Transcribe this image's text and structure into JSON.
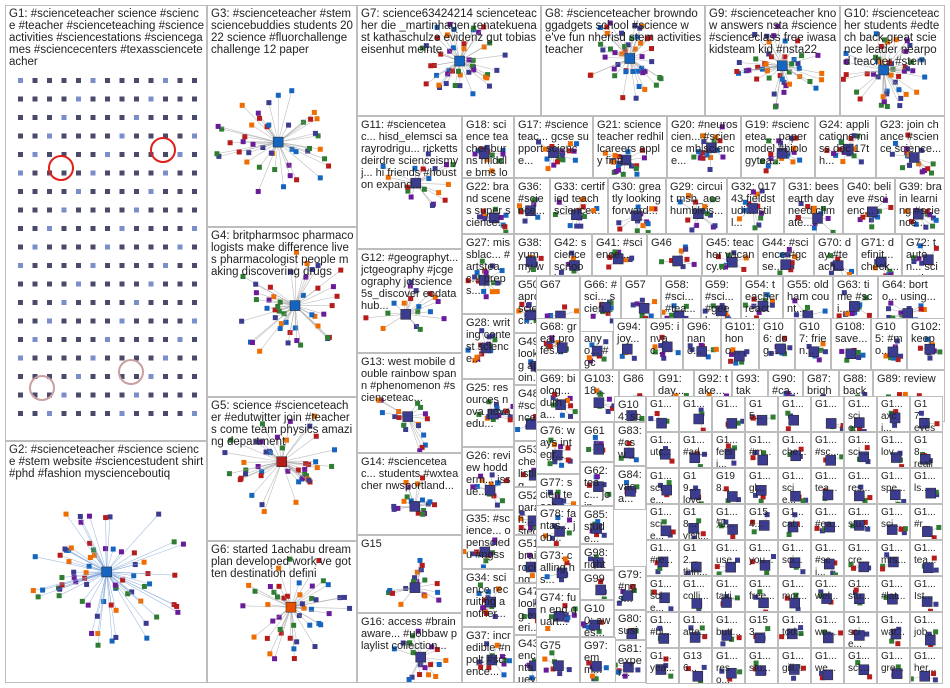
{
  "title": "#scienceteacher",
  "groups": [
    {
      "id": "G1",
      "text": "G1: #scienceteacher science #science #teacher #scienceteaching #scienceactivities #sciencestations #sciencegames #sciencecenters #texasscienceteacher"
    },
    {
      "id": "G2",
      "text": "G2: #scienceteacher #science science #stem website #sciencestudent shirt #phd #fashion myscienceboutiq"
    },
    {
      "id": "G3",
      "text": "G3: #scienceteacher #stem sciencebuddies students 2022 science #fluorchallenge challenge 12 paper"
    },
    {
      "id": "G4",
      "text": "G4: britpharmsoc pharmacologists make difference lives pharmacologist people making discovering drugs"
    },
    {
      "id": "G5",
      "text": "G5: science #scienceteacher #edutwitter join #teachers come team physics amazing department"
    },
    {
      "id": "G6",
      "text": "G6: started 1achabu dream plan developed work ve gotten destination defini"
    },
    {
      "id": "G7",
      "text": "G7: science63424214 scienceteacher die _martinhagen renatekuenast kathaschulze evidenz gut tobiaseisenhut meinte"
    },
    {
      "id": "G8",
      "text": "G8: #scienceteacher browndoggadgets school #science we've fun nherisd stem activities teacher"
    },
    {
      "id": "G9",
      "text": "G9: #scienceteacher know answers nsta #science #scienceclass free iwasakidsteam kid #nsta22"
    },
    {
      "id": "G10",
      "text": "G10: #scienceteacher students #edtech back great science leader nearpod teacher #stem"
    },
    {
      "id": "G11",
      "text": "G11: #scienceteac... hisd_elemsci sarayrodrigu... rickettsdeirdre scienceismyj... hi friends #houston expand..."
    },
    {
      "id": "G12",
      "text": "G12: #geographyt... jctgeography #jcgeography jctscience 5s_discover eodatahub..."
    },
    {
      "id": "G13",
      "text": "G13: west mobile double rainbow spann #phenomenon #scienceteac..."
    },
    {
      "id": "G14",
      "text": "G14: #scienceteac... students #wxteacher nwsportland..."
    },
    {
      "id": "G15",
      "text": "G15"
    },
    {
      "id": "G16",
      "text": "G16: access #brainaware... #uobbaw playlist collection..."
    },
    {
      "id": "G17",
      "text": "G17: #scienceteac... gcse support science..."
    },
    {
      "id": "G18",
      "text": "G18: science teacher burns middle bms looking add..."
    },
    {
      "id": "G19",
      "text": "G19: #sciencetea... paper model #biologytea..."
    },
    {
      "id": "G20",
      "text": "G20: #neuroscien... #science mblscience..."
    },
    {
      "id": "G21",
      "text": "G21: science teacher redhillcareers apply find..."
    },
    {
      "id": "G22",
      "text": "G22: brand scenes super science..."
    },
    {
      "id": "G23",
      "text": "G23: join chance #science science..."
    },
    {
      "id": "G24",
      "text": "G24: applications miss dec 17th..."
    },
    {
      "id": "G25",
      "text": "G25: resources nova novaedu..."
    },
    {
      "id": "G26",
      "text": "G26: review hodderm... issue..."
    },
    {
      "id": "G27",
      "text": "G27: missblac... #artsteac... preps..."
    },
    {
      "id": "G28",
      "text": "G28: writing contest science..."
    },
    {
      "id": "G29",
      "text": "G29: circuit msb_ace humbleis..."
    },
    {
      "id": "G30",
      "text": "G30: greatly looking forward..."
    },
    {
      "id": "G31",
      "text": "G31: bees earth day need climate..."
    },
    {
      "id": "G32",
      "text": "G32: 01743 fieldstudi... still..."
    },
    {
      "id": "G33",
      "text": "G33: certified teach science..."
    },
    {
      "id": "G34",
      "text": "G34: science recruiting another..."
    },
    {
      "id": "G35",
      "text": "G35: #science... opensciedu #ngss"
    },
    {
      "id": "G36",
      "text": "G36: #science..."
    },
    {
      "id": "G37",
      "text": "G37: incredible #npqlt #science..."
    },
    {
      "id": "G38",
      "text": "G38: yummy way end unit..."
    },
    {
      "id": "G39",
      "text": "G39: brain learning #science..."
    },
    {
      "id": "G40",
      "text": "G40: believe #scienc..."
    },
    {
      "id": "G41",
      "text": "G41: #science..."
    },
    {
      "id": "G42",
      "text": "G42: science school..."
    },
    {
      "id": "G43",
      "text": "G43: encanta nueva..."
    },
    {
      "id": "G44",
      "text": "G44: #science #gcse..."
    },
    {
      "id": "G45",
      "text": "G45: teacher vacancy..."
    },
    {
      "id": "G46",
      "text": "G46"
    },
    {
      "id": "G47",
      "text": "G47: looking experi..."
    },
    {
      "id": "G48",
      "text": "G48: #science..."
    },
    {
      "id": "G49",
      "text": "G49: looking appoin..."
    },
    {
      "id": "G50",
      "text": "G50: apron scienc..."
    },
    {
      "id": "G51",
      "text": "G51: brain rocking..."
    },
    {
      "id": "G52",
      "text": "G52: parach... tested"
    },
    {
      "id": "G53",
      "text": "G53: check listing..."
    },
    {
      "id": "G54",
      "text": "G54: teacher reacti..."
    },
    {
      "id": "G55",
      "text": "G55: oldham count..."
    },
    {
      "id": "G56",
      "text": "G56: #sci... #sci..."
    },
    {
      "id": "G57",
      "text": "G57"
    },
    {
      "id": "G58",
      "text": "G58: #sci... #tea..."
    },
    {
      "id": "G59",
      "text": "G59: #sci... #geek..."
    },
    {
      "id": "G60",
      "text": "G60: check scien..."
    },
    {
      "id": "G61",
      "text": "G61"
    },
    {
      "id": "G62",
      "text": "G62: teac... join..."
    },
    {
      "id": "G63",
      "text": "G63: time #sci..."
    },
    {
      "id": "G64",
      "text": "G64: borto... using..."
    },
    {
      "id": "G65",
      "text": "G65: anyo... #gcs..."
    },
    {
      "id": "G66",
      "text": "G66: #sci... scien..."
    },
    {
      "id": "G67",
      "text": "G67"
    },
    {
      "id": "G68",
      "text": "G68: great profes..."
    },
    {
      "id": "G69",
      "text": "G69: biolog... durha..."
    },
    {
      "id": "G70",
      "text": "G70: day #teach..."
    },
    {
      "id": "G71",
      "text": "G71: definit... check..."
    },
    {
      "id": "G72",
      "text": "G72: tauton... scienti..."
    },
    {
      "id": "G73",
      "text": "G73: calling hs..."
    },
    {
      "id": "G74",
      "text": "G74: fun end quart..."
    },
    {
      "id": "G75",
      "text": "G75"
    },
    {
      "id": "G76",
      "text": "G76: ways integr..."
    },
    {
      "id": "G77",
      "text": "G77: scien teach..."
    },
    {
      "id": "G78",
      "text": "G78: fantas... job..."
    },
    {
      "id": "G79",
      "text": "G79: #ngs..."
    },
    {
      "id": "G80",
      "text": "G80: susie..."
    },
    {
      "id": "G81",
      "text": "G81: exper..."
    },
    {
      "id": "G82",
      "text": "G82: learni..."
    },
    {
      "id": "G83",
      "text": "G83: #csw..."
    },
    {
      "id": "G84",
      "text": "G84: vaca..."
    },
    {
      "id": "G85",
      "text": "G85: stude..."
    },
    {
      "id": "G86",
      "text": "G86"
    },
    {
      "id": "G87",
      "text": "G87: bright..."
    },
    {
      "id": "G88",
      "text": "G88: back"
    },
    {
      "id": "G89",
      "text": "G89: review"
    },
    {
      "id": "G90",
      "text": "G90: #ca..."
    },
    {
      "id": "G91",
      "text": "G91: day..."
    },
    {
      "id": "G92",
      "text": "G92: take..."
    },
    {
      "id": "G93",
      "text": "G93: take..."
    },
    {
      "id": "G94",
      "text": "G94: joy..."
    },
    {
      "id": "G95",
      "text": "G95: invac..."
    },
    {
      "id": "G96",
      "text": "G96: nano..."
    },
    {
      "id": "G97",
      "text": "G97: emm..."
    },
    {
      "id": "G98",
      "text": "G98: right"
    },
    {
      "id": "G99",
      "text": "G99"
    },
    {
      "id": "G100",
      "text": "G100: awes..."
    },
    {
      "id": "G101",
      "text": "G101: hono..."
    },
    {
      "id": "G102",
      "text": "G102: keep"
    },
    {
      "id": "G103",
      "text": "G103: 18..."
    },
    {
      "id": "G104",
      "text": "G104: scien"
    },
    {
      "id": "G105",
      "text": "G105: #mo..."
    },
    {
      "id": "G106",
      "text": "G106: dog..."
    },
    {
      "id": "G107",
      "text": "G107: frien..."
    },
    {
      "id": "G108",
      "text": "G108: save..."
    }
  ],
  "small_grid_labels": [
    "G1...",
    "G1...",
    "G1...",
    "G15...",
    "G1...",
    "G1...",
    "G1... scie...",
    "G1... axci...",
    "G17... eyes",
    "G1... utc...",
    "G1... #ad...",
    "G1... feeli...",
    "G1... #m...",
    "G1... che...",
    "G1... #sc...",
    "G1... sci...",
    "G1... lov...",
    "G18... really...",
    "G1... scie...",
    "G19... love",
    "G198...",
    "G1... gl...",
    "G1... scie...",
    "G1... tea...",
    "G1... res...",
    "G1... spe...",
    "G1... ls...",
    "G1... scie...",
    "G18... visit...",
    "G1... 知...",
    "G154...",
    "G1... cat...",
    "G1... #ea...",
    "G1... stu...",
    "G1... sci...",
    "G1... #r...",
    "G1... #re...",
    "G12... thin...",
    "G1... use...",
    "G1... you...",
    "G1... sci...",
    "G1... #sci...",
    "G1... cre...",
    "G1... mrs...",
    "G1... tea...",
    "G1... scie...",
    "G1... colli...",
    "G1... taki...",
    "G1... free...",
    "G1... mor...",
    "G1... wel...",
    "G1... stu...",
    "G1... #lat...",
    "G1... Ist...",
    "G1... #bl...",
    "G1... atte...",
    "G1... butt...",
    "G153...",
    "G1... tod...",
    "G1... we...",
    "G1... scie...",
    "G1... wat...",
    "G1... job...",
    "G1... yea...",
    "G136...",
    "G1... reso...",
    "G1... stu...",
    "G1... gill...",
    "G1... we...",
    "G1... sci...",
    "G1... gre...",
    "G1... her...",
    "G1... vid...",
    "G141...",
    "G142...",
    "G1... lev...",
    "G1... hey...",
    "G1... sci...",
    "G1... sci...",
    "G1... tod...",
    "G1... #sc...",
    "G1... sci...",
    "G1... #p..."
  ],
  "colors": {
    "edge": "#9e9e9e",
    "node": "#3b3b8f",
    "highlight": "#e0201a"
  }
}
